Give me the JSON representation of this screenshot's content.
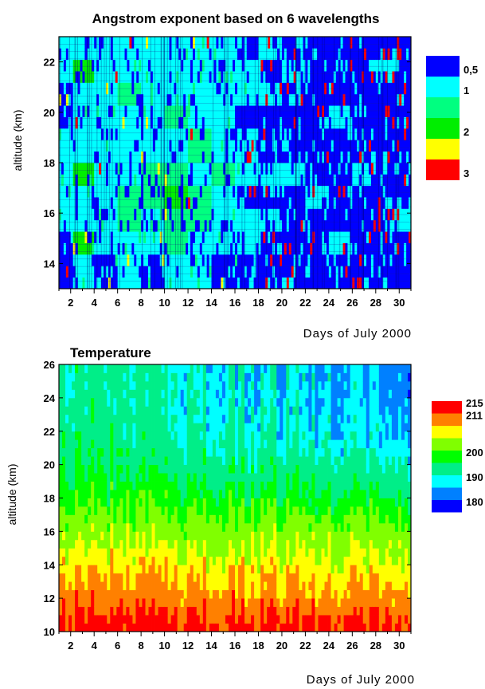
{
  "chart_data": [
    {
      "type": "heatmap",
      "title": "Angstrom exponent based on 6 wavelengths",
      "xlabel": "Days of July 2000",
      "ylabel": "altitude (km)",
      "xlim": [
        1,
        31
      ],
      "ylim": [
        13,
        23
      ],
      "x_ticks": [
        "2",
        "4",
        "6",
        "8",
        "10",
        "12",
        "14",
        "16",
        "18",
        "20",
        "22",
        "24",
        "26",
        "28",
        "30"
      ],
      "y_ticks": [
        "14",
        "16",
        "18",
        "20",
        "22"
      ],
      "colorbar": {
        "levels": [
          {
            "label": "0,5",
            "color": "#0000ff"
          },
          {
            "label": "1",
            "color": "#00ffff"
          },
          {
            "label": "",
            "color": "#00ff80"
          },
          {
            "label": "2",
            "color": "#00ee00"
          },
          {
            "label": "",
            "color": "#ffff00"
          },
          {
            "label": "3",
            "color": "#ff0000"
          }
        ]
      },
      "profile_strips": [
        {
          "day": 1.5,
          "by_altitude_band": [
            "blue",
            "blue",
            "cyan",
            "cyan",
            "cyan",
            "cyan",
            "blue",
            "blue",
            "cyan",
            "cyan"
          ]
        },
        {
          "day": 3.0,
          "by_altitude_band": [
            "cyan",
            "green",
            "cyan",
            "cyan",
            "green",
            "cyan",
            "cyan",
            "cyan",
            "green",
            "cyan"
          ]
        },
        {
          "day": 5.0,
          "by_altitude_band": [
            "blue",
            "cyan",
            "cyan",
            "cyan",
            "cyan",
            "cyan",
            "cyan",
            "cyan",
            "cyan",
            "cyan"
          ]
        },
        {
          "day": 7.0,
          "by_altitude_band": [
            "cyan",
            "cyan",
            "seagreen",
            "seagreen",
            "cyan",
            "cyan",
            "cyan",
            "seagreen",
            "cyan",
            "cyan"
          ]
        },
        {
          "day": 9.0,
          "by_altitude_band": [
            "blue",
            "cyan",
            "cyan",
            "seagreen",
            "seagreen",
            "cyan",
            "cyan",
            "cyan",
            "cyan",
            "cyan"
          ]
        },
        {
          "day": 11.0,
          "by_altitude_band": [
            "cyan",
            "seagreen",
            "seagreen",
            "green",
            "seagreen",
            "cyan",
            "seagreen",
            "cyan",
            "cyan",
            "cyan"
          ]
        },
        {
          "day": 13.0,
          "by_altitude_band": [
            "cyan",
            "cyan",
            "seagreen",
            "seagreen",
            "cyan",
            "seagreen",
            "cyan",
            "cyan",
            "cyan",
            "cyan"
          ]
        },
        {
          "day": 15.0,
          "by_altitude_band": [
            "blue",
            "cyan",
            "cyan",
            "cyan",
            "seagreen",
            "cyan",
            "cyan",
            "cyan",
            "cyan",
            "cyan"
          ]
        },
        {
          "day": 17.0,
          "by_altitude_band": [
            "blue",
            "cyan",
            "cyan",
            "blue",
            "cyan",
            "cyan",
            "blue",
            "cyan",
            "cyan",
            "blue"
          ]
        },
        {
          "day": 19.0,
          "by_altitude_band": [
            "blue",
            "blue",
            "cyan",
            "blue",
            "cyan",
            "blue",
            "blue",
            "cyan",
            "blue",
            "cyan"
          ]
        },
        {
          "day": 21.0,
          "by_altitude_band": [
            "blue",
            "blue",
            "blue",
            "blue",
            "cyan",
            "blue",
            "blue",
            "blue",
            "cyan",
            "blue"
          ]
        },
        {
          "day": 23.0,
          "by_altitude_band": [
            "blue",
            "blue",
            "blue",
            "cyan",
            "blue",
            "blue",
            "blue",
            "blue",
            "blue",
            "blue"
          ]
        },
        {
          "day": 25.0,
          "by_altitude_band": [
            "blue",
            "cyan",
            "blue",
            "blue",
            "blue",
            "blue",
            "cyan",
            "blue",
            "blue",
            "blue"
          ]
        },
        {
          "day": 27.0,
          "by_altitude_band": [
            "blue",
            "blue",
            "blue",
            "blue",
            "cyan",
            "blue",
            "blue",
            "blue",
            "blue",
            "blue"
          ]
        },
        {
          "day": 29.0,
          "by_altitude_band": [
            "blue",
            "blue",
            "blue",
            "blue",
            "blue",
            "blue",
            "blue",
            "blue",
            "cyan",
            "blue"
          ]
        },
        {
          "day": 30.5,
          "by_altitude_band": [
            "blue",
            "blue",
            "cyan",
            "blue",
            "blue",
            "blue",
            "blue",
            "blue",
            "blue",
            "blue"
          ]
        }
      ],
      "grid": false
    },
    {
      "type": "heatmap",
      "title": "Temperature",
      "xlabel": "Days of July 2000",
      "ylabel": "altitude (km)",
      "xlim": [
        1,
        31
      ],
      "ylim": [
        10,
        26
      ],
      "x_ticks": [
        "2",
        "4",
        "6",
        "8",
        "10",
        "12",
        "14",
        "16",
        "18",
        "20",
        "22",
        "24",
        "26",
        "28",
        "30"
      ],
      "y_ticks": [
        "10",
        "12",
        "14",
        "16",
        "18",
        "20",
        "22",
        "24",
        "26"
      ],
      "colorbar": {
        "levels": [
          {
            "label": "215",
            "color": "#ff0000"
          },
          {
            "label": "211",
            "color": "#ff8000"
          },
          {
            "label": "",
            "color": "#ffff00"
          },
          {
            "label": "",
            "color": "#80ff00"
          },
          {
            "label": "200",
            "color": "#00ff00"
          },
          {
            "label": "",
            "color": "#00ee88"
          },
          {
            "label": "190",
            "color": "#00ffff"
          },
          {
            "label": "",
            "color": "#0080ff"
          },
          {
            "label": "180",
            "color": "#0000ff"
          }
        ]
      },
      "temperature_profile_K": [
        {
          "altitude": 10.5,
          "early_july": 213,
          "late_july": 212
        },
        {
          "altitude": 12,
          "early_july": 209,
          "late_july": 207
        },
        {
          "altitude": 14,
          "early_july": 205,
          "late_july": 203
        },
        {
          "altitude": 16,
          "early_july": 200,
          "late_july": 199
        },
        {
          "altitude": 18,
          "early_july": 196,
          "late_july": 193
        },
        {
          "altitude": 20,
          "early_july": 193,
          "late_july": 188
        },
        {
          "altitude": 22,
          "early_july": 191,
          "late_july": 185
        },
        {
          "altitude": 24,
          "early_july": 190,
          "late_july": 184
        },
        {
          "altitude": 26,
          "early_july": 190,
          "late_july": 184
        }
      ],
      "grid": false
    }
  ]
}
